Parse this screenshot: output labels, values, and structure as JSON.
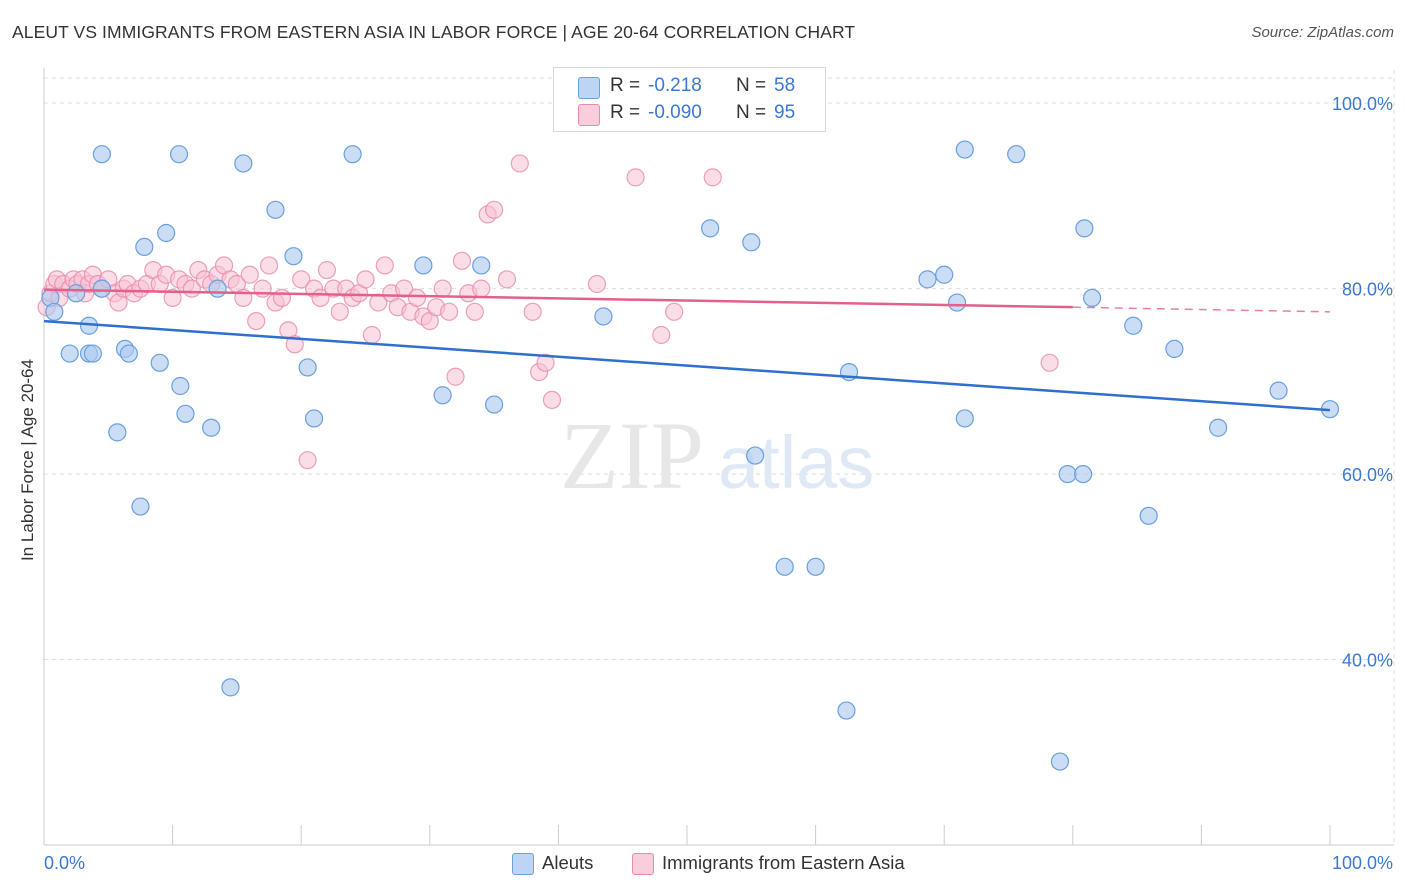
{
  "title": "ALEUT VS IMMIGRANTS FROM EASTERN ASIA IN LABOR FORCE | AGE 20-64 CORRELATION CHART",
  "source": "Source: ZipAtlas.com",
  "watermark": {
    "zip": "ZIP",
    "atlas": "atlas"
  },
  "legend": {
    "rows": [
      {
        "r_label": "R =",
        "r_value": "-0.218",
        "n_label": "N =",
        "n_value": "58"
      },
      {
        "r_label": "R =",
        "r_value": "-0.090",
        "n_label": "N =",
        "n_value": "95"
      }
    ]
  },
  "bottom_legend": [
    "Aleuts",
    "Immigrants from Eastern Asia"
  ],
  "colors": {
    "blue_fill": "#aecbf0",
    "blue_stroke": "#6a9fe0",
    "blue_line": "#2f6fce",
    "pink_fill": "#f7c1d3",
    "pink_stroke": "#e88aab",
    "pink_line": "#e4608c",
    "grid": "#dddddd",
    "axis_text": "#3b78d0"
  },
  "chart_data": {
    "type": "scatter",
    "title": "ALEUT VS IMMIGRANTS FROM EASTERN ASIA IN LABOR FORCE | AGE 20-64 CORRELATION CHART",
    "xlabel": "",
    "ylabel": "In Labor Force | Age 20-64",
    "xlim": [
      0,
      100
    ],
    "ylim": [
      20,
      102.5
    ],
    "x_tick_labels": [
      "0.0%",
      "100.0%"
    ],
    "y_ticks": [
      40,
      60,
      80,
      100
    ],
    "y_tick_labels": [
      "40.0%",
      "60.0%",
      "80.0%",
      "100.0%"
    ],
    "grid": true,
    "series": [
      {
        "name": "Aleuts",
        "color": "#aecbf0",
        "trend": {
          "x": [
            0,
            100
          ],
          "y": [
            76.5,
            66.9
          ]
        },
        "points": [
          [
            0.5,
            79
          ],
          [
            0.8,
            77.5
          ],
          [
            2,
            73
          ],
          [
            2.5,
            79.5
          ],
          [
            3.5,
            73
          ],
          [
            3.5,
            76
          ],
          [
            3.8,
            73
          ],
          [
            4.5,
            94.5
          ],
          [
            4.5,
            80
          ],
          [
            5.7,
            64.5
          ],
          [
            6.3,
            73.5
          ],
          [
            6.6,
            73
          ],
          [
            7.5,
            56.5
          ],
          [
            7.8,
            84.5
          ],
          [
            9,
            72
          ],
          [
            9.5,
            86
          ],
          [
            10.5,
            94.5
          ],
          [
            10.6,
            69.5
          ],
          [
            11,
            66.5
          ],
          [
            13,
            65
          ],
          [
            13.5,
            80
          ],
          [
            14.5,
            37
          ],
          [
            15.5,
            93.5
          ],
          [
            18,
            88.5
          ],
          [
            19.4,
            83.5
          ],
          [
            20.5,
            71.5
          ],
          [
            21,
            66
          ],
          [
            24,
            94.5
          ],
          [
            29.5,
            82.5
          ],
          [
            31,
            68.5
          ],
          [
            34,
            82.5
          ],
          [
            35,
            67.5
          ],
          [
            43.5,
            77
          ],
          [
            51.8,
            86.5
          ],
          [
            55,
            85
          ],
          [
            55.3,
            62
          ],
          [
            57.6,
            50
          ],
          [
            60,
            50
          ],
          [
            62.4,
            34.5
          ],
          [
            62.6,
            71
          ],
          [
            68.7,
            81
          ],
          [
            70,
            81.5
          ],
          [
            71,
            78.5
          ],
          [
            71.6,
            66
          ],
          [
            71.6,
            95
          ],
          [
            75.6,
            94.5
          ],
          [
            79,
            29
          ],
          [
            79.6,
            60
          ],
          [
            80.8,
            60
          ],
          [
            80.9,
            86.5
          ],
          [
            81.5,
            79
          ],
          [
            84.7,
            76
          ],
          [
            85.9,
            55.5
          ],
          [
            87.9,
            73.5
          ],
          [
            91.3,
            65
          ],
          [
            96,
            69
          ],
          [
            100,
            67
          ]
        ]
      },
      {
        "name": "Immigrants from Eastern Asia",
        "color": "#f7c1d3",
        "trend": {
          "x": [
            0,
            80
          ],
          "y": [
            79.9,
            78.0
          ]
        },
        "trend_dashed": {
          "x": [
            80,
            100
          ],
          "y": [
            78.0,
            77.5
          ]
        },
        "points": [
          [
            0.2,
            78
          ],
          [
            0.5,
            79.5
          ],
          [
            0.8,
            80.5
          ],
          [
            1,
            81
          ],
          [
            1.2,
            79
          ],
          [
            1.5,
            80.5
          ],
          [
            2,
            80
          ],
          [
            2.3,
            81
          ],
          [
            2.6,
            80.5
          ],
          [
            3,
            81
          ],
          [
            3.2,
            79.5
          ],
          [
            3.5,
            80.5
          ],
          [
            3.8,
            81.5
          ],
          [
            4.2,
            80.5
          ],
          [
            4.5,
            80
          ],
          [
            5,
            81
          ],
          [
            5.5,
            79.5
          ],
          [
            5.8,
            78.5
          ],
          [
            6.2,
            80
          ],
          [
            6.5,
            80.5
          ],
          [
            7,
            79.5
          ],
          [
            7.5,
            80
          ],
          [
            8,
            80.5
          ],
          [
            8.5,
            82
          ],
          [
            9,
            80.5
          ],
          [
            9.5,
            81.5
          ],
          [
            10,
            79
          ],
          [
            10.5,
            81
          ],
          [
            11,
            80.5
          ],
          [
            11.5,
            80
          ],
          [
            12,
            82
          ],
          [
            12.5,
            81
          ],
          [
            13,
            80.5
          ],
          [
            13.5,
            81.5
          ],
          [
            14,
            82.5
          ],
          [
            14.5,
            81
          ],
          [
            15,
            80.5
          ],
          [
            15.5,
            79
          ],
          [
            16,
            81.5
          ],
          [
            16.5,
            76.5
          ],
          [
            17,
            80
          ],
          [
            17.5,
            82.5
          ],
          [
            18,
            78.5
          ],
          [
            18.5,
            79
          ],
          [
            19,
            75.5
          ],
          [
            19.5,
            74
          ],
          [
            20,
            81
          ],
          [
            20.5,
            61.5
          ],
          [
            21,
            80
          ],
          [
            21.5,
            79
          ],
          [
            22,
            82
          ],
          [
            22.5,
            80
          ],
          [
            23,
            77.5
          ],
          [
            23.5,
            80
          ],
          [
            24,
            79
          ],
          [
            24.5,
            79.5
          ],
          [
            25,
            81
          ],
          [
            25.5,
            75
          ],
          [
            26,
            78.5
          ],
          [
            26.5,
            82.5
          ],
          [
            27,
            79.5
          ],
          [
            27.5,
            78
          ],
          [
            28,
            80
          ],
          [
            28.5,
            77.5
          ],
          [
            29,
            79
          ],
          [
            29.5,
            77
          ],
          [
            30,
            76.5
          ],
          [
            30.5,
            78
          ],
          [
            31,
            80
          ],
          [
            31.5,
            77.5
          ],
          [
            32,
            70.5
          ],
          [
            32.5,
            83
          ],
          [
            33,
            79.5
          ],
          [
            33.5,
            77.5
          ],
          [
            34,
            80
          ],
          [
            34.5,
            88
          ],
          [
            35,
            88.5
          ],
          [
            36,
            81
          ],
          [
            37,
            93.5
          ],
          [
            38,
            77.5
          ],
          [
            38.5,
            71
          ],
          [
            39,
            72
          ],
          [
            39.5,
            68
          ],
          [
            43,
            80.5
          ],
          [
            46,
            92
          ],
          [
            48,
            75
          ],
          [
            49,
            77.5
          ],
          [
            52,
            92
          ],
          [
            78.2,
            72
          ]
        ]
      }
    ]
  }
}
